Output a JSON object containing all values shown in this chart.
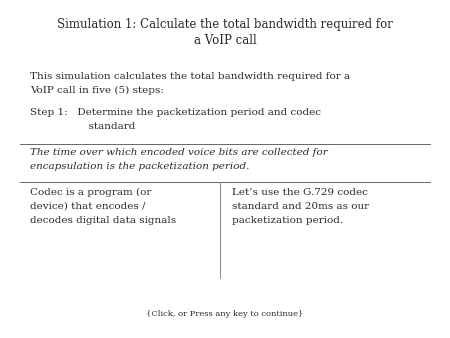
{
  "title_line1": "Simulation 1: Calculate the total bandwidth required for",
  "title_line2": "a VoIP call",
  "intro_line1": "This simulation calculates the total bandwidth required for a",
  "intro_line2": "VoIP call in five (5) steps:",
  "step_line1": "Step 1:   Determine the packetization period and codec",
  "step_line2": "                  standard",
  "italic_line1": "The time over which encoded voice bits are collected for",
  "italic_line2": "encapsulation is the packetization period.",
  "left_col_line1": "Codec is a program (or",
  "left_col_line2": "device) that encodes /",
  "left_col_line3": "decodes digital data signals",
  "right_col_line1": "Let’s use the G.729 codec",
  "right_col_line2": "standard and 20ms as our",
  "right_col_line3": "packetization period.",
  "footer": "{Click, or Press any key to continue}",
  "bg_color": "#ffffff",
  "text_color": "#2a2a2a",
  "line_color": "#666666",
  "divider_color": "#888888",
  "fs_title": 8.5,
  "fs_body": 7.5,
  "fs_footer": 6.0
}
